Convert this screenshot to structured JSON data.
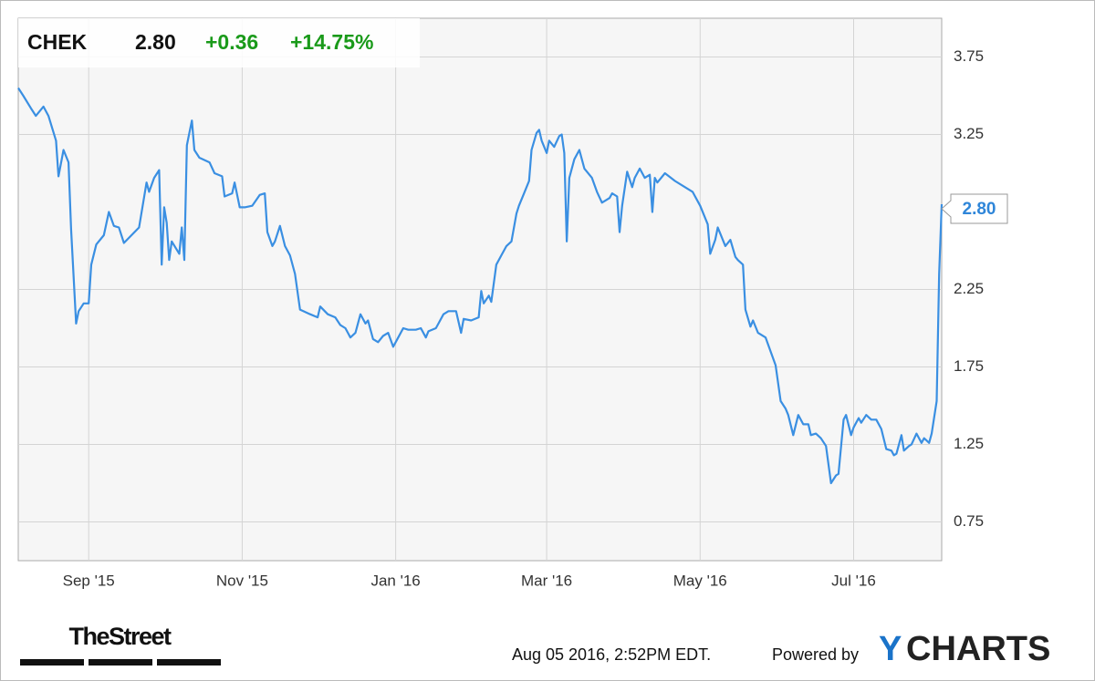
{
  "header": {
    "ticker": "CHEK",
    "price": "2.80",
    "change": "+0.36",
    "change_pct": "+14.75%"
  },
  "chart_data": {
    "type": "line",
    "color": "#3a8fe2",
    "x": [
      "2015-08-04",
      "2015-08-06",
      "2015-08-09",
      "2015-08-11",
      "2015-08-14",
      "2015-08-16",
      "2015-08-19",
      "2015-08-20",
      "2015-08-22",
      "2015-08-24",
      "2015-08-25",
      "2015-08-27",
      "2015-08-28",
      "2015-08-30",
      "2015-09-01",
      "2015-09-02",
      "2015-09-04",
      "2015-09-07",
      "2015-09-09",
      "2015-09-11",
      "2015-09-13",
      "2015-09-15",
      "2015-09-18",
      "2015-09-21",
      "2015-09-24",
      "2015-09-25",
      "2015-09-27",
      "2015-09-29",
      "2015-09-30",
      "2015-10-01",
      "2015-10-02",
      "2015-10-03",
      "2015-10-04",
      "2015-10-07",
      "2015-10-08",
      "2015-10-09",
      "2015-10-10",
      "2015-10-11",
      "2015-10-12",
      "2015-10-13",
      "2015-10-15",
      "2015-10-19",
      "2015-10-21",
      "2015-10-24",
      "2015-10-25",
      "2015-10-28",
      "2015-10-29",
      "2015-10-31",
      "2015-11-02",
      "2015-11-05",
      "2015-11-08",
      "2015-11-10",
      "2015-11-11",
      "2015-11-13",
      "2015-11-14",
      "2015-11-16",
      "2015-11-18",
      "2015-11-20",
      "2015-11-22",
      "2015-11-24",
      "2015-11-28",
      "2015-12-01",
      "2015-12-02",
      "2015-12-05",
      "2015-12-08",
      "2015-12-10",
      "2015-12-12",
      "2015-12-14",
      "2015-12-16",
      "2015-12-18",
      "2015-12-20",
      "2015-12-21",
      "2015-12-23",
      "2015-12-25",
      "2015-12-27",
      "2015-12-29",
      "2015-12-31",
      "2016-01-02",
      "2016-01-04",
      "2016-01-06",
      "2016-01-09",
      "2016-01-11",
      "2016-01-13",
      "2016-01-14",
      "2016-01-17",
      "2016-01-18",
      "2016-01-20",
      "2016-01-22",
      "2016-01-25",
      "2016-01-27",
      "2016-01-28",
      "2016-01-31",
      "2016-02-03",
      "2016-02-04",
      "2016-02-05",
      "2016-02-07",
      "2016-02-08",
      "2016-02-10",
      "2016-02-12",
      "2016-02-14",
      "2016-02-16",
      "2016-02-18",
      "2016-02-19",
      "2016-02-21",
      "2016-02-23",
      "2016-02-24",
      "2016-02-26",
      "2016-02-27",
      "2016-02-28",
      "2016-03-01",
      "2016-03-02",
      "2016-03-04",
      "2016-03-06",
      "2016-03-07",
      "2016-03-08",
      "2016-03-09",
      "2016-03-10",
      "2016-03-12",
      "2016-03-14",
      "2016-03-16",
      "2016-03-19",
      "2016-03-21",
      "2016-03-23",
      "2016-03-26",
      "2016-03-27",
      "2016-03-29",
      "2016-03-30",
      "2016-03-31",
      "2016-04-02",
      "2016-04-04",
      "2016-04-05",
      "2016-04-07",
      "2016-04-09",
      "2016-04-11",
      "2016-04-12",
      "2016-04-13",
      "2016-04-14",
      "2016-04-17",
      "2016-04-21",
      "2016-04-25",
      "2016-04-28",
      "2016-05-01",
      "2016-05-04",
      "2016-05-05",
      "2016-05-07",
      "2016-05-08",
      "2016-05-11",
      "2016-05-13",
      "2016-05-15",
      "2016-05-16",
      "2016-05-18",
      "2016-05-19",
      "2016-05-21",
      "2016-05-22",
      "2016-05-24",
      "2016-05-27",
      "2016-05-29",
      "2016-05-31",
      "2016-06-02",
      "2016-06-04",
      "2016-06-05",
      "2016-06-07",
      "2016-06-09",
      "2016-06-11",
      "2016-06-13",
      "2016-06-14",
      "2016-06-16",
      "2016-06-18",
      "2016-06-20",
      "2016-06-22",
      "2016-06-24",
      "2016-06-25",
      "2016-06-27",
      "2016-06-28",
      "2016-06-30",
      "2016-07-01",
      "2016-07-03",
      "2016-07-04",
      "2016-07-06",
      "2016-07-08",
      "2016-07-10",
      "2016-07-12",
      "2016-07-14",
      "2016-07-16",
      "2016-07-17",
      "2016-07-18",
      "2016-07-20",
      "2016-07-21",
      "2016-07-23",
      "2016-07-24",
      "2016-07-26",
      "2016-07-28",
      "2016-07-29",
      "2016-07-31",
      "2016-08-01",
      "2016-08-03",
      "2016-08-04",
      "2016-08-05"
    ],
    "values": [
      3.55,
      3.5,
      3.42,
      3.37,
      3.43,
      3.37,
      3.21,
      2.98,
      3.15,
      3.07,
      2.64,
      2.03,
      2.11,
      2.16,
      2.16,
      2.41,
      2.54,
      2.6,
      2.75,
      2.66,
      2.65,
      2.55,
      2.6,
      2.65,
      2.94,
      2.88,
      2.97,
      3.02,
      2.41,
      2.78,
      2.68,
      2.44,
      2.56,
      2.48,
      2.65,
      2.44,
      3.18,
      3.26,
      3.34,
      3.15,
      3.1,
      3.07,
      3.0,
      2.98,
      2.85,
      2.87,
      2.94,
      2.78,
      2.78,
      2.79,
      2.86,
      2.87,
      2.62,
      2.53,
      2.56,
      2.66,
      2.53,
      2.47,
      2.35,
      2.12,
      2.09,
      2.07,
      2.14,
      2.09,
      2.07,
      2.02,
      2.0,
      1.94,
      1.97,
      2.09,
      2.03,
      2.05,
      1.93,
      1.91,
      1.95,
      1.97,
      1.88,
      1.94,
      2.0,
      1.99,
      1.99,
      2.0,
      1.94,
      1.98,
      2.0,
      2.03,
      2.09,
      2.11,
      2.11,
      1.97,
      2.06,
      2.05,
      2.07,
      2.24,
      2.16,
      2.21,
      2.17,
      2.41,
      2.47,
      2.53,
      2.56,
      2.74,
      2.79,
      2.87,
      2.95,
      3.15,
      3.26,
      3.28,
      3.21,
      3.13,
      3.21,
      3.17,
      3.24,
      3.25,
      3.13,
      2.56,
      2.97,
      3.09,
      3.15,
      3.03,
      2.97,
      2.88,
      2.81,
      2.84,
      2.87,
      2.85,
      2.62,
      2.79,
      3.01,
      2.91,
      2.97,
      3.03,
      2.97,
      2.99,
      2.75,
      2.97,
      2.94,
      3.0,
      2.95,
      2.91,
      2.88,
      2.79,
      2.67,
      2.48,
      2.57,
      2.65,
      2.53,
      2.57,
      2.46,
      2.44,
      2.41,
      2.12,
      2.01,
      2.05,
      1.97,
      1.94,
      1.85,
      1.76,
      1.53,
      1.48,
      1.44,
      1.31,
      1.44,
      1.38,
      1.38,
      1.31,
      1.32,
      1.29,
      1.24,
      1.0,
      1.05,
      1.06,
      1.41,
      1.44,
      1.31,
      1.36,
      1.42,
      1.39,
      1.44,
      1.41,
      1.41,
      1.35,
      1.22,
      1.21,
      1.18,
      1.19,
      1.31,
      1.21,
      1.24,
      1.25,
      1.32,
      1.26,
      1.29,
      1.26,
      1.32,
      1.53,
      2.35,
      2.8
    ],
    "xlim": [
      "2015-08-04",
      "2016-08-05"
    ],
    "xticks": [
      {
        "value": "2015-09-01",
        "label": "Sep '15"
      },
      {
        "value": "2015-11-01",
        "label": "Nov '15"
      },
      {
        "value": "2016-01-01",
        "label": "Jan '16"
      },
      {
        "value": "2016-03-01",
        "label": "Mar '16"
      },
      {
        "value": "2016-05-01",
        "label": "May '16"
      },
      {
        "value": "2016-07-01",
        "label": "Jul '16"
      }
    ],
    "ylim": [
      0.5,
      4.0
    ],
    "yticks": [
      0.75,
      1.25,
      1.75,
      2.25,
      3.25,
      3.75
    ],
    "grid": true
  },
  "footer": {
    "brand": "TheStreet",
    "timestamp": "Aug 05 2016, 2:52PM EDT.",
    "powered": "Powered by",
    "logo_y": "Y",
    "logo_rest": "CHARTS"
  }
}
